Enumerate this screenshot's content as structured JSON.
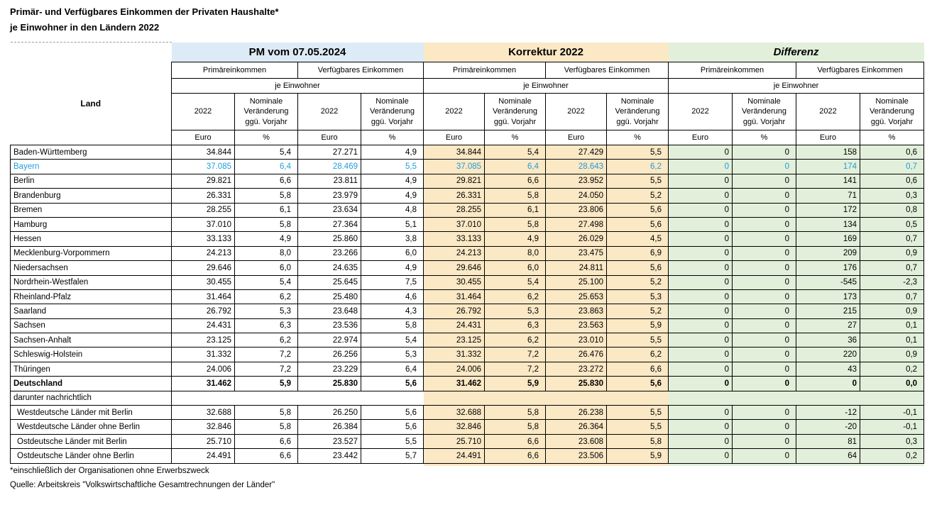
{
  "title": {
    "line1": "Primär- und Verfügbares Einkommen der Privaten Haushalte*",
    "line2": "je Einwohner in den Ländern 2022"
  },
  "column_groups": [
    {
      "label": "PM vom 07.05.2024",
      "key": "pm"
    },
    {
      "label": "Korrektur 2022",
      "key": "korrektur"
    },
    {
      "label": "Differenz",
      "key": "differenz"
    }
  ],
  "headers": {
    "land": "Land",
    "primaereinkommen": "Primäreinkommen",
    "verfuegbares_einkommen": "Verfügbares Einkommen",
    "je_einwohner": "je Einwohner",
    "year": "2022",
    "nominale_veraenderung": "Nominale Veränderung ggü. Vorjahr",
    "unit_euro": "Euro",
    "unit_percent": "%"
  },
  "rows": [
    {
      "land": "Baden-Württemberg",
      "style": "normal",
      "values": [
        "34.844",
        "5,4",
        "27.271",
        "4,9",
        "34.844",
        "5,4",
        "27.429",
        "5,5",
        "0",
        "0",
        "158",
        "0,6"
      ]
    },
    {
      "land": "Bayern",
      "style": "highlight",
      "values": [
        "37.085",
        "6,4",
        "28.469",
        "5,5",
        "37.085",
        "6,4",
        "28.643",
        "6,2",
        "0",
        "0",
        "174",
        "0,7"
      ]
    },
    {
      "land": "Berlin",
      "style": "normal",
      "values": [
        "29.821",
        "6,6",
        "23.811",
        "4,9",
        "29.821",
        "6,6",
        "23.952",
        "5,5",
        "0",
        "0",
        "141",
        "0,6"
      ]
    },
    {
      "land": "Brandenburg",
      "style": "normal",
      "values": [
        "26.331",
        "5,8",
        "23.979",
        "4,9",
        "26.331",
        "5,8",
        "24.050",
        "5,2",
        "0",
        "0",
        "71",
        "0,3"
      ]
    },
    {
      "land": "Bremen",
      "style": "normal",
      "values": [
        "28.255",
        "6,1",
        "23.634",
        "4,8",
        "28.255",
        "6,1",
        "23.806",
        "5,6",
        "0",
        "0",
        "172",
        "0,8"
      ]
    },
    {
      "land": "Hamburg",
      "style": "normal",
      "values": [
        "37.010",
        "5,8",
        "27.364",
        "5,1",
        "37.010",
        "5,8",
        "27.498",
        "5,6",
        "0",
        "0",
        "134",
        "0,5"
      ]
    },
    {
      "land": "Hessen",
      "style": "normal",
      "values": [
        "33.133",
        "4,9",
        "25.860",
        "3,8",
        "33.133",
        "4,9",
        "26.029",
        "4,5",
        "0",
        "0",
        "169",
        "0,7"
      ]
    },
    {
      "land": "Mecklenburg-Vorpommern",
      "style": "normal",
      "values": [
        "24.213",
        "8,0",
        "23.266",
        "6,0",
        "24.213",
        "8,0",
        "23.475",
        "6,9",
        "0",
        "0",
        "209",
        "0,9"
      ]
    },
    {
      "land": "Niedersachsen",
      "style": "normal",
      "values": [
        "29.646",
        "6,0",
        "24.635",
        "4,9",
        "29.646",
        "6,0",
        "24.811",
        "5,6",
        "0",
        "0",
        "176",
        "0,7"
      ]
    },
    {
      "land": "Nordrhein-Westfalen",
      "style": "normal",
      "values": [
        "30.455",
        "5,4",
        "25.645",
        "7,5",
        "30.455",
        "5,4",
        "25.100",
        "5,2",
        "0",
        "0",
        "-545",
        "-2,3"
      ]
    },
    {
      "land": "Rheinland-Pfalz",
      "style": "normal",
      "values": [
        "31.464",
        "6,2",
        "25.480",
        "4,6",
        "31.464",
        "6,2",
        "25.653",
        "5,3",
        "0",
        "0",
        "173",
        "0,7"
      ]
    },
    {
      "land": "Saarland",
      "style": "normal",
      "values": [
        "26.792",
        "5,3",
        "23.648",
        "4,3",
        "26.792",
        "5,3",
        "23.863",
        "5,2",
        "0",
        "0",
        "215",
        "0,9"
      ]
    },
    {
      "land": "Sachsen",
      "style": "normal",
      "values": [
        "24.431",
        "6,3",
        "23.536",
        "5,8",
        "24.431",
        "6,3",
        "23.563",
        "5,9",
        "0",
        "0",
        "27",
        "0,1"
      ]
    },
    {
      "land": "Sachsen-Anhalt",
      "style": "normal",
      "values": [
        "23.125",
        "6,2",
        "22.974",
        "5,4",
        "23.125",
        "6,2",
        "23.010",
        "5,5",
        "0",
        "0",
        "36",
        "0,1"
      ]
    },
    {
      "land": "Schleswig-Holstein",
      "style": "normal",
      "values": [
        "31.332",
        "7,2",
        "26.256",
        "5,3",
        "31.332",
        "7,2",
        "26.476",
        "6,2",
        "0",
        "0",
        "220",
        "0,9"
      ]
    },
    {
      "land": "Thüringen",
      "style": "normal",
      "values": [
        "24.006",
        "7,2",
        "23.229",
        "6,4",
        "24.006",
        "7,2",
        "23.272",
        "6,6",
        "0",
        "0",
        "43",
        "0,2"
      ]
    },
    {
      "land": "Deutschland",
      "style": "bold",
      "values": [
        "31.462",
        "5,9",
        "25.830",
        "5,6",
        "31.462",
        "5,9",
        "25.830",
        "5,6",
        "0",
        "0",
        "0",
        "0,0"
      ]
    },
    {
      "type": "separator",
      "land": "darunter nachrichtlich"
    },
    {
      "land": "Westdeutsche Länder mit Berlin",
      "style": "indent",
      "values": [
        "32.688",
        "5,8",
        "26.250",
        "5,6",
        "32.688",
        "5,8",
        "26.238",
        "5,5",
        "0",
        "0",
        "-12",
        "-0,1"
      ]
    },
    {
      "land": "Westdeutsche Länder ohne Berlin",
      "style": "indent",
      "values": [
        "32.846",
        "5,8",
        "26.384",
        "5,6",
        "32.846",
        "5,8",
        "26.364",
        "5,5",
        "0",
        "0",
        "-20",
        "-0,1"
      ]
    },
    {
      "land": "Ostdeutsche Länder mit Berlin",
      "style": "indent",
      "values": [
        "25.710",
        "6,6",
        "23.527",
        "5,5",
        "25.710",
        "6,6",
        "23.608",
        "5,8",
        "0",
        "0",
        "81",
        "0,3"
      ]
    },
    {
      "land": "Ostdeutsche Länder ohne Berlin",
      "style": "indent",
      "values": [
        "24.491",
        "6,6",
        "23.442",
        "5,7",
        "24.491",
        "6,6",
        "23.506",
        "5,9",
        "0",
        "0",
        "64",
        "0,2"
      ]
    }
  ],
  "footnotes": [
    "*einschließlich der Organisationen ohne Erwerbszweck",
    "Quelle: Arbeitskreis \"Volkswirtschaftliche Gesamtrechnungen der Länder\""
  ],
  "colors": {
    "pm_header_fill": "#DDEBF7",
    "korrektur_fill": "#FBE8C5",
    "differenz_fill": "#E2EFDA",
    "highlight_text": "#1F9ED8",
    "border": "#000000"
  }
}
